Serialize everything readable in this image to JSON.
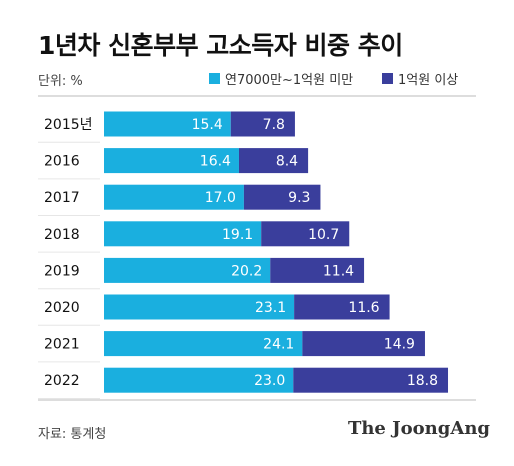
{
  "title": "1년차 신혼부부 고소득자 비중 추이",
  "unit": "단위: %",
  "source": "자료: 통계청",
  "brand": "The JoongAng",
  "colors": {
    "under": "#1aafdf",
    "over": "#3a3e9c",
    "divider": "#bbbbbb"
  },
  "chart_data": {
    "type": "bar",
    "orientation": "horizontal",
    "stacked": true,
    "categories": [
      "2015년",
      "2016",
      "2017",
      "2018",
      "2019",
      "2020",
      "2021",
      "2022"
    ],
    "series": [
      {
        "name": "연7000만~1억원 미만",
        "values": [
          15.4,
          16.4,
          17.0,
          19.1,
          20.2,
          23.1,
          24.1,
          23.0
        ]
      },
      {
        "name": "1억원 이상",
        "values": [
          7.8,
          8.4,
          9.3,
          10.7,
          11.4,
          11.6,
          14.9,
          18.8
        ]
      }
    ],
    "value_labels": [
      [
        "15.4",
        "16.4",
        "17.0",
        "19.1",
        "20.2",
        "23.1",
        "24.1",
        "23.0"
      ],
      [
        "7.8",
        "8.4",
        "9.3",
        "10.7",
        "11.4",
        "11.6",
        "14.9",
        "18.8"
      ]
    ],
    "legend": "top-right",
    "grid": false
  }
}
